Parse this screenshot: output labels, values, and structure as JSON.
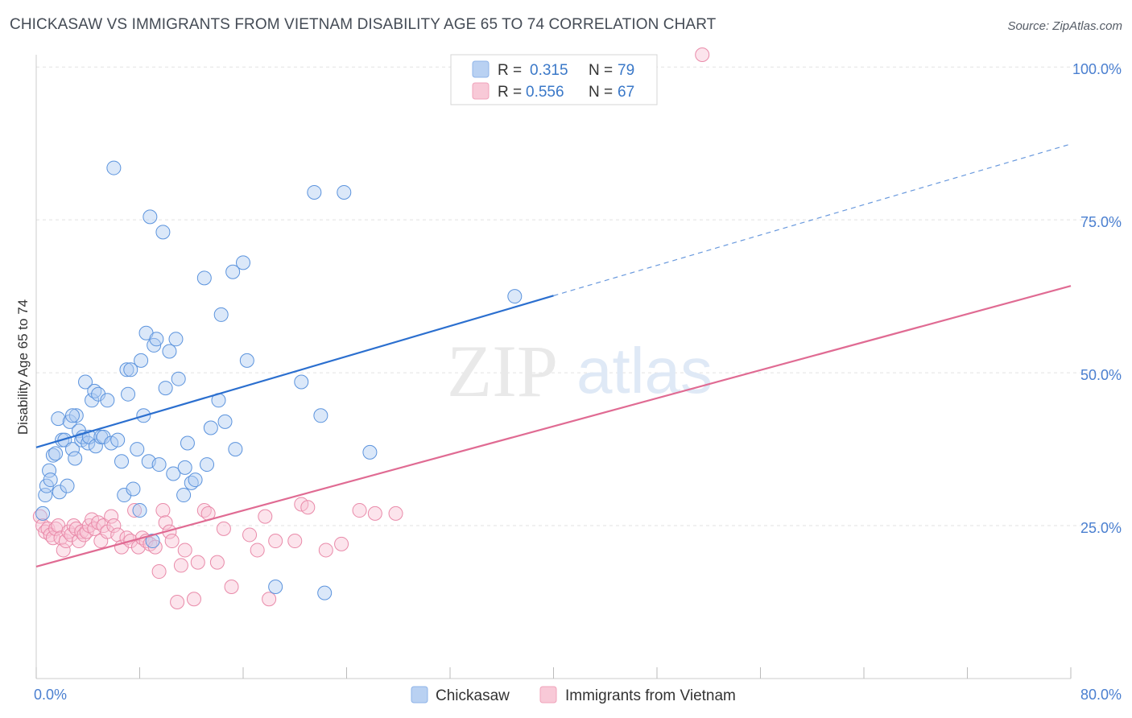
{
  "header": {
    "title": "CHICKASAW VS IMMIGRANTS FROM VIETNAM DISABILITY AGE 65 TO 74 CORRELATION CHART",
    "source": "Source: ZipAtlas.com"
  },
  "watermark": {
    "zip": "ZIP",
    "atlas": "atlas"
  },
  "legend": {
    "r_label": "R =",
    "n_label": "N =",
    "entries": [
      {
        "r": "0.315",
        "n": "79",
        "color": "#8fb4e8"
      },
      {
        "r": "0.556",
        "n": "67",
        "color": "#f0a3bb"
      }
    ]
  },
  "bottom_legend": [
    "Chickasaw",
    "Immigrants from Vietnam"
  ],
  "chart_data": {
    "type": "scatter",
    "ylabel": "Disability Age 65 to 74",
    "x_ticks": [
      "0.0%",
      "80.0%"
    ],
    "y_ticks": [
      "25.0%",
      "50.0%",
      "75.0%",
      "100.0%"
    ],
    "xlim": [
      0,
      80
    ],
    "ylim": [
      0,
      102
    ],
    "grid": true,
    "colors": {
      "blue": "#5b93dd",
      "pink": "#e98aa9",
      "blue_line": "#2b6fcf",
      "pink_line": "#e06b93"
    },
    "series": [
      {
        "name": "Chickasaw",
        "trend": {
          "x0": 0,
          "y0": 37.8,
          "x1": 40,
          "y1": 62.6,
          "x_dash_end": 80,
          "y_dash_end": 87.4
        },
        "points": [
          [
            0.5,
            27
          ],
          [
            0.7,
            30
          ],
          [
            0.8,
            31.5
          ],
          [
            1,
            34
          ],
          [
            1.1,
            32.5
          ],
          [
            1.3,
            36.5
          ],
          [
            1.5,
            36.8
          ],
          [
            1.7,
            42.5
          ],
          [
            1.8,
            30.5
          ],
          [
            2,
            39
          ],
          [
            2.2,
            39
          ],
          [
            2.4,
            31.5
          ],
          [
            2.6,
            42
          ],
          [
            2.8,
            37.5
          ],
          [
            3,
            36
          ],
          [
            3.1,
            43
          ],
          [
            3.3,
            40.5
          ],
          [
            3.5,
            39
          ],
          [
            3.6,
            39.5
          ],
          [
            3.8,
            48.5
          ],
          [
            4,
            38.5
          ],
          [
            4.1,
            39.5
          ],
          [
            4.3,
            45.5
          ],
          [
            4.5,
            47
          ],
          [
            4.6,
            38
          ],
          [
            4.8,
            46.5
          ],
          [
            5,
            39.5
          ],
          [
            5.2,
            39.5
          ],
          [
            5.5,
            45.5
          ],
          [
            5.8,
            38.5
          ],
          [
            6,
            83.5
          ],
          [
            6.3,
            39
          ],
          [
            6.6,
            35.5
          ],
          [
            6.8,
            30
          ],
          [
            7,
            50.5
          ],
          [
            7.1,
            46.5
          ],
          [
            7.3,
            50.5
          ],
          [
            7.5,
            31
          ],
          [
            7.8,
            37.5
          ],
          [
            8,
            27.5
          ],
          [
            8.1,
            52
          ],
          [
            8.3,
            43
          ],
          [
            8.5,
            56.5
          ],
          [
            8.7,
            35.5
          ],
          [
            9,
            22.5
          ],
          [
            8.8,
            75.5
          ],
          [
            9.1,
            54.5
          ],
          [
            9.3,
            55.5
          ],
          [
            9.5,
            35
          ],
          [
            9.8,
            73
          ],
          [
            10,
            47.5
          ],
          [
            10.3,
            53.5
          ],
          [
            10.6,
            33.5
          ],
          [
            10.8,
            55.5
          ],
          [
            11,
            49
          ],
          [
            11.4,
            30
          ],
          [
            11.5,
            34.5
          ],
          [
            11.7,
            38.5
          ],
          [
            12,
            32
          ],
          [
            12.3,
            32.5
          ],
          [
            13,
            65.5
          ],
          [
            13.2,
            35
          ],
          [
            13.5,
            41
          ],
          [
            14.1,
            45.5
          ],
          [
            14.3,
            59.5
          ],
          [
            14.6,
            42
          ],
          [
            15.2,
            66.5
          ],
          [
            15.4,
            37.5
          ],
          [
            16,
            68
          ],
          [
            16.3,
            52
          ],
          [
            18.5,
            15
          ],
          [
            20.5,
            48.5
          ],
          [
            21.5,
            79.5
          ],
          [
            22,
            43
          ],
          [
            22.3,
            14
          ],
          [
            23.8,
            79.5
          ],
          [
            25.8,
            37
          ],
          [
            37,
            62.5
          ],
          [
            2.8,
            43
          ]
        ]
      },
      {
        "name": "Immigrants from Vietnam",
        "trend": {
          "x0": 0,
          "y0": 18.3,
          "x1": 80,
          "y1": 64.2
        },
        "points": [
          [
            0.3,
            26.5
          ],
          [
            0.5,
            25
          ],
          [
            0.7,
            24
          ],
          [
            0.9,
            24.5
          ],
          [
            1.1,
            23.5
          ],
          [
            1.3,
            23
          ],
          [
            1.5,
            24.5
          ],
          [
            1.7,
            25
          ],
          [
            1.9,
            23
          ],
          [
            2.1,
            21
          ],
          [
            2.3,
            22.5
          ],
          [
            2.5,
            24
          ],
          [
            2.7,
            23.5
          ],
          [
            2.9,
            25
          ],
          [
            3.1,
            24.5
          ],
          [
            3.3,
            22.5
          ],
          [
            3.5,
            24
          ],
          [
            3.7,
            23.5
          ],
          [
            3.9,
            24
          ],
          [
            4.1,
            25
          ],
          [
            4.3,
            26
          ],
          [
            4.5,
            24.5
          ],
          [
            4.8,
            25.5
          ],
          [
            5,
            22.5
          ],
          [
            5.2,
            25
          ],
          [
            5.5,
            24
          ],
          [
            5.8,
            26.5
          ],
          [
            6,
            25
          ],
          [
            6.3,
            23.5
          ],
          [
            6.6,
            21.5
          ],
          [
            7,
            23
          ],
          [
            7.3,
            22.5
          ],
          [
            7.6,
            27.5
          ],
          [
            7.9,
            21.5
          ],
          [
            8.2,
            23
          ],
          [
            8.5,
            22.5
          ],
          [
            8.8,
            22
          ],
          [
            9.2,
            21.5
          ],
          [
            9.5,
            17.5
          ],
          [
            9.8,
            27.5
          ],
          [
            10,
            25.5
          ],
          [
            10.3,
            24
          ],
          [
            10.5,
            22.5
          ],
          [
            10.9,
            12.5
          ],
          [
            11.2,
            18.5
          ],
          [
            11.5,
            21
          ],
          [
            12.2,
            13
          ],
          [
            12.5,
            19
          ],
          [
            13,
            27.5
          ],
          [
            13.3,
            27
          ],
          [
            14,
            19
          ],
          [
            14.5,
            24.5
          ],
          [
            15.1,
            15
          ],
          [
            16.5,
            23.5
          ],
          [
            17.1,
            21
          ],
          [
            17.7,
            26.5
          ],
          [
            18,
            13
          ],
          [
            18.5,
            22.5
          ],
          [
            20,
            22.5
          ],
          [
            20.5,
            28.5
          ],
          [
            21,
            28
          ],
          [
            22.4,
            21
          ],
          [
            23.6,
            22
          ],
          [
            25,
            27.5
          ],
          [
            26.2,
            27
          ],
          [
            27.8,
            27
          ],
          [
            51.5,
            102
          ]
        ]
      }
    ]
  }
}
